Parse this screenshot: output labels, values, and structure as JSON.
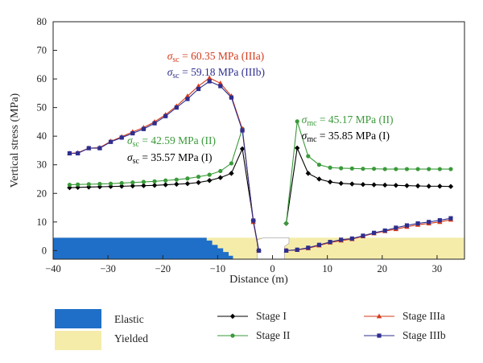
{
  "chart_data": {
    "type": "line",
    "xlabel": "Distance (m)",
    "ylabel": "Vertical stress (MPa)",
    "xlim": [
      -40,
      35
    ],
    "ylim": [
      -3,
      80
    ],
    "xticks": [
      -40,
      -30,
      -20,
      -10,
      0,
      10,
      20,
      30
    ],
    "yticks": [
      0,
      10,
      20,
      30,
      40,
      50,
      60,
      70,
      80
    ],
    "grid": false,
    "colors": {
      "stage1": "#000000",
      "stage2": "#3a9a3a",
      "stage3a": "#d43a1a",
      "stage3b": "#2e2e8e",
      "elastic": "#1f6fc8",
      "yielded": "#f5ecaa"
    },
    "series": [
      {
        "name": "Stage I",
        "key": "stage1",
        "marker": "diamond",
        "left": {
          "x": [
            -37,
            -35.5,
            -33.5,
            -31.5,
            -29.5,
            -27.5,
            -25.5,
            -23.5,
            -21.5,
            -19.5,
            -17.5,
            -15.5,
            -13.5,
            -11.5,
            -9.5,
            -7.5,
            -5.5,
            -3.5,
            -2.5
          ],
          "y": [
            22,
            22.1,
            22.2,
            22.3,
            22.4,
            22.5,
            22.6,
            22.7,
            22.8,
            23,
            23.2,
            23.4,
            23.8,
            24.5,
            25.5,
            27,
            35.57,
            10.5,
            0
          ]
        },
        "right": {
          "x": [
            2.5,
            4.5,
            6.5,
            8.5,
            10.5,
            12.5,
            14.5,
            16.5,
            18.5,
            20.5,
            22.5,
            24.5,
            26.5,
            28.5,
            30.5,
            32.5
          ],
          "y": [
            9.5,
            35.85,
            27,
            25,
            24,
            23.5,
            23.3,
            23.1,
            23,
            22.9,
            22.8,
            22.7,
            22.6,
            22.5,
            22.5,
            22.4
          ]
        }
      },
      {
        "name": "Stage II",
        "key": "stage2",
        "marker": "circle",
        "left": {
          "x": [
            -37,
            -35.5,
            -33.5,
            -31.5,
            -29.5,
            -27.5,
            -25.5,
            -23.5,
            -21.5,
            -19.5,
            -17.5,
            -15.5,
            -13.5,
            -11.5,
            -9.5,
            -7.5,
            -5.5,
            -3.5,
            -2.5
          ],
          "y": [
            23,
            23.1,
            23.2,
            23.3,
            23.4,
            23.6,
            23.8,
            24,
            24.2,
            24.5,
            24.8,
            25.2,
            25.8,
            26.5,
            27.8,
            30.5,
            42.59,
            10,
            0
          ]
        },
        "right": {
          "x": [
            2.5,
            4.5,
            6.5,
            8.5,
            10.5,
            12.5,
            14.5,
            16.5,
            18.5,
            20.5,
            22.5,
            24.5,
            26.5,
            28.5,
            30.5,
            32.5
          ],
          "y": [
            9.5,
            45.17,
            33,
            30,
            29,
            28.8,
            28.7,
            28.6,
            28.6,
            28.5,
            28.5,
            28.5,
            28.5,
            28.5,
            28.5,
            28.5
          ]
        }
      },
      {
        "name": "Stage IIIa",
        "key": "stage3a",
        "marker": "triangle",
        "left": {
          "x": [
            -37,
            -35.5,
            -33.5,
            -31.5,
            -29.5,
            -27.5,
            -25.5,
            -23.5,
            -21.5,
            -19.5,
            -17.5,
            -15.5,
            -13.5,
            -11.5,
            -9.5,
            -7.5,
            -5.5,
            -3.5,
            -2.5
          ],
          "y": [
            34,
            34.2,
            35.8,
            36,
            38.2,
            39.8,
            41.5,
            43,
            45,
            47.5,
            50.5,
            54,
            57.5,
            60.35,
            58.5,
            54,
            42.5,
            10,
            0
          ]
        },
        "right": {
          "x": [
            2.5,
            4.5,
            6.5,
            8.5,
            10.5,
            12.5,
            14.5,
            16.5,
            18.5,
            20.5,
            22.5,
            24.5,
            26.5,
            28.5,
            30.5,
            32.5
          ],
          "y": [
            0,
            0.2,
            0.8,
            1.8,
            2.8,
            3.5,
            4,
            5,
            6,
            6.8,
            7.5,
            8.3,
            9,
            9.5,
            10,
            10.8
          ]
        }
      },
      {
        "name": "Stage IIIb",
        "key": "stage3b",
        "marker": "square",
        "left": {
          "x": [
            -37,
            -35.5,
            -33.5,
            -31.5,
            -29.5,
            -27.5,
            -25.5,
            -23.5,
            -21.5,
            -19.5,
            -17.5,
            -15.5,
            -13.5,
            -11.5,
            -9.5,
            -7.5,
            -5.5,
            -3.5,
            -2.5
          ],
          "y": [
            34,
            34,
            35.8,
            35.8,
            38,
            39.5,
            41,
            42.5,
            44.5,
            47,
            50,
            53,
            56.5,
            59.18,
            57.5,
            53.5,
            42,
            10.5,
            0
          ]
        },
        "right": {
          "x": [
            2.5,
            4.5,
            6.5,
            8.5,
            10.5,
            12.5,
            14.5,
            16.5,
            18.5,
            20.5,
            22.5,
            24.5,
            26.5,
            28.5,
            30.5,
            32.5
          ],
          "y": [
            0,
            0.3,
            1,
            2,
            3,
            3.8,
            4.2,
            5.2,
            6.2,
            7,
            8,
            8.8,
            9.5,
            10,
            10.6,
            11.3
          ]
        }
      }
    ],
    "annotations": [
      {
        "key": "stage3a",
        "symbol": "σ",
        "sub": "sc",
        "rest": " = 60.35 MPa (IIIa)",
        "ax": -19.2,
        "ay": 66.8
      },
      {
        "key": "stage3b",
        "symbol": "σ",
        "sub": "sc",
        "rest": " = 59.18 MPa (IIIb)",
        "ax": -19.2,
        "ay": 61.2
      },
      {
        "key": "stage2",
        "symbol": "σ",
        "sub": "sc",
        "rest": " = 42.59 MPa (II)",
        "ax": -26.5,
        "ay": 37.2
      },
      {
        "key": "stage1",
        "symbol": "σ",
        "sub": "sc",
        "rest": " = 35.57 MPa (I)",
        "ax": -26.5,
        "ay": 31.3
      },
      {
        "key": "stage2",
        "symbol": "σ",
        "sub": "mc",
        "rest": " = 45.17 MPa (II)",
        "ax": 5.3,
        "ay": 44.6
      },
      {
        "key": "stage1",
        "symbol": "σ",
        "sub": "mc",
        "rest": " = 35.85 MPa (I)",
        "ax": 5.3,
        "ay": 38.9
      }
    ],
    "zones": {
      "elastic_label": "Elastic",
      "yielded_label": "Yielded"
    },
    "legend_placement": "bottom"
  }
}
